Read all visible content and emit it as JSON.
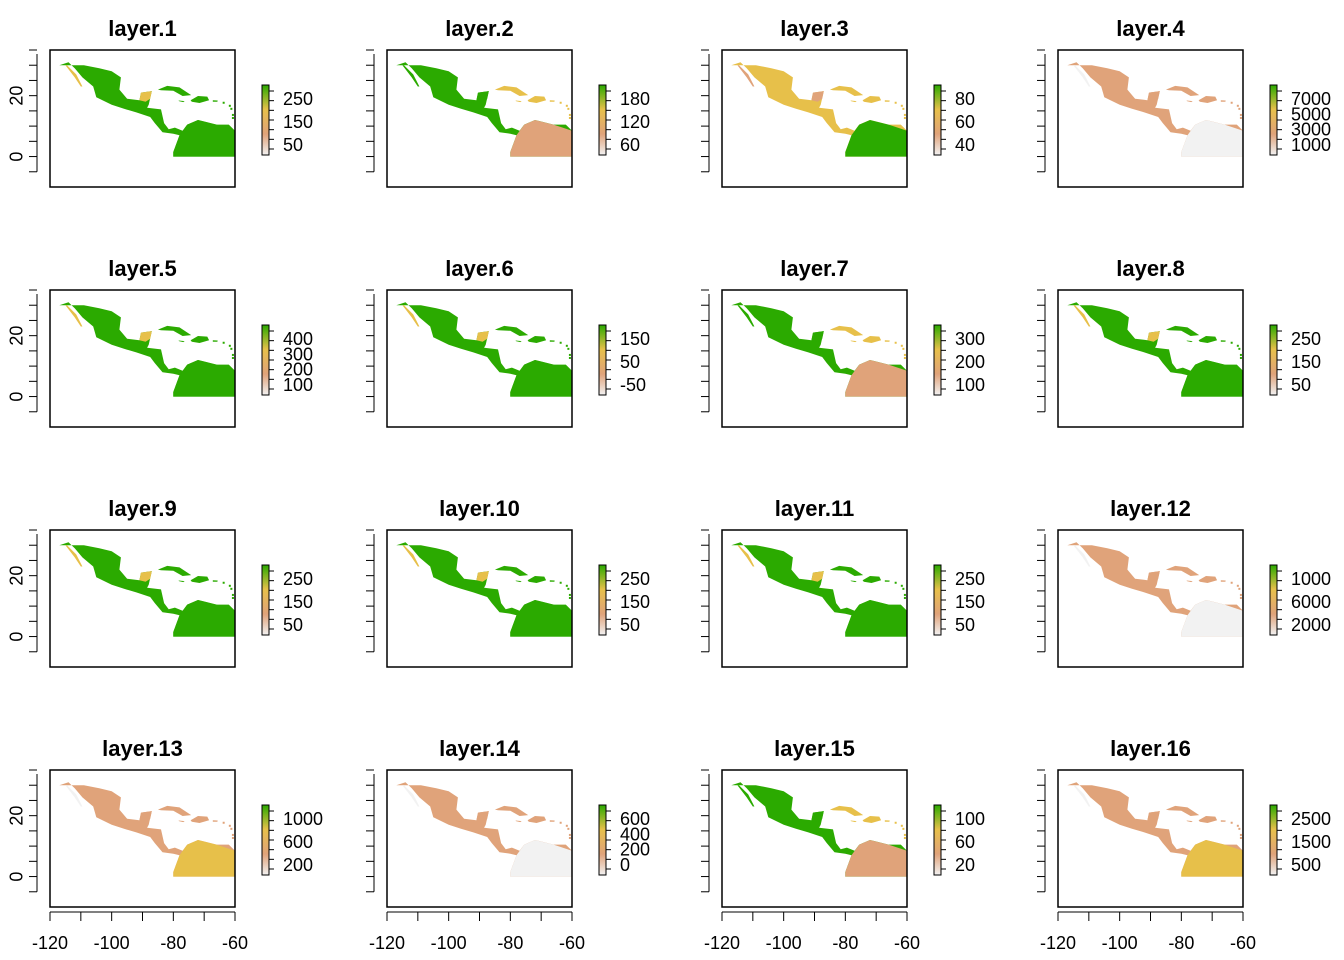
{
  "colors": {
    "low": "#F2F2F2",
    "mid_low": "#E0A37A",
    "mid": "#E7C04A",
    "high": "#2BAA00",
    "frame": "#000000"
  },
  "axes": {
    "y_ticks": [
      "0",
      "20"
    ],
    "x_ticks": [
      "-120",
      "-100",
      "-80",
      "-60"
    ],
    "x_range": [
      -120,
      -60
    ],
    "y_range": [
      -10,
      35
    ]
  },
  "panels": [
    {
      "title": "layer.1",
      "legend_ticks": [
        "250",
        "150",
        "50"
      ],
      "pattern": "green"
    },
    {
      "title": "layer.2",
      "legend_ticks": [
        "180",
        "120",
        "60"
      ],
      "pattern": "green_north"
    },
    {
      "title": "layer.3",
      "legend_ticks": [
        "80",
        "60",
        "40"
      ],
      "pattern": "green_south"
    },
    {
      "title": "layer.4",
      "legend_ticks": [
        "7000",
        "5000",
        "3000",
        "1000"
      ],
      "pattern": "pale"
    },
    {
      "title": "layer.5",
      "legend_ticks": [
        "400",
        "300",
        "200",
        "100"
      ],
      "pattern": "green"
    },
    {
      "title": "layer.6",
      "legend_ticks": [
        "150",
        "50",
        "-50"
      ],
      "pattern": "green"
    },
    {
      "title": "layer.7",
      "legend_ticks": [
        "300",
        "200",
        "100"
      ],
      "pattern": "green_north"
    },
    {
      "title": "layer.8",
      "legend_ticks": [
        "250",
        "150",
        "50"
      ],
      "pattern": "green"
    },
    {
      "title": "layer.9",
      "legend_ticks": [
        "250",
        "150",
        "50"
      ],
      "pattern": "green"
    },
    {
      "title": "layer.10",
      "legend_ticks": [
        "250",
        "150",
        "50"
      ],
      "pattern": "green"
    },
    {
      "title": "layer.11",
      "legend_ticks": [
        "250",
        "150",
        "50"
      ],
      "pattern": "green"
    },
    {
      "title": "layer.12",
      "legend_ticks": [
        "1000",
        "6000",
        "2000"
      ],
      "pattern": "pale"
    },
    {
      "title": "layer.13",
      "legend_ticks": [
        "1000",
        "600",
        "200"
      ],
      "pattern": "salmon"
    },
    {
      "title": "layer.14",
      "legend_ticks": [
        "600",
        "400",
        "200",
        "0"
      ],
      "pattern": "pale"
    },
    {
      "title": "layer.15",
      "legend_ticks": [
        "100",
        "60",
        "20"
      ],
      "pattern": "green_north"
    },
    {
      "title": "layer.16",
      "legend_ticks": [
        "2500",
        "1500",
        "500"
      ],
      "pattern": "salmon"
    }
  ]
}
